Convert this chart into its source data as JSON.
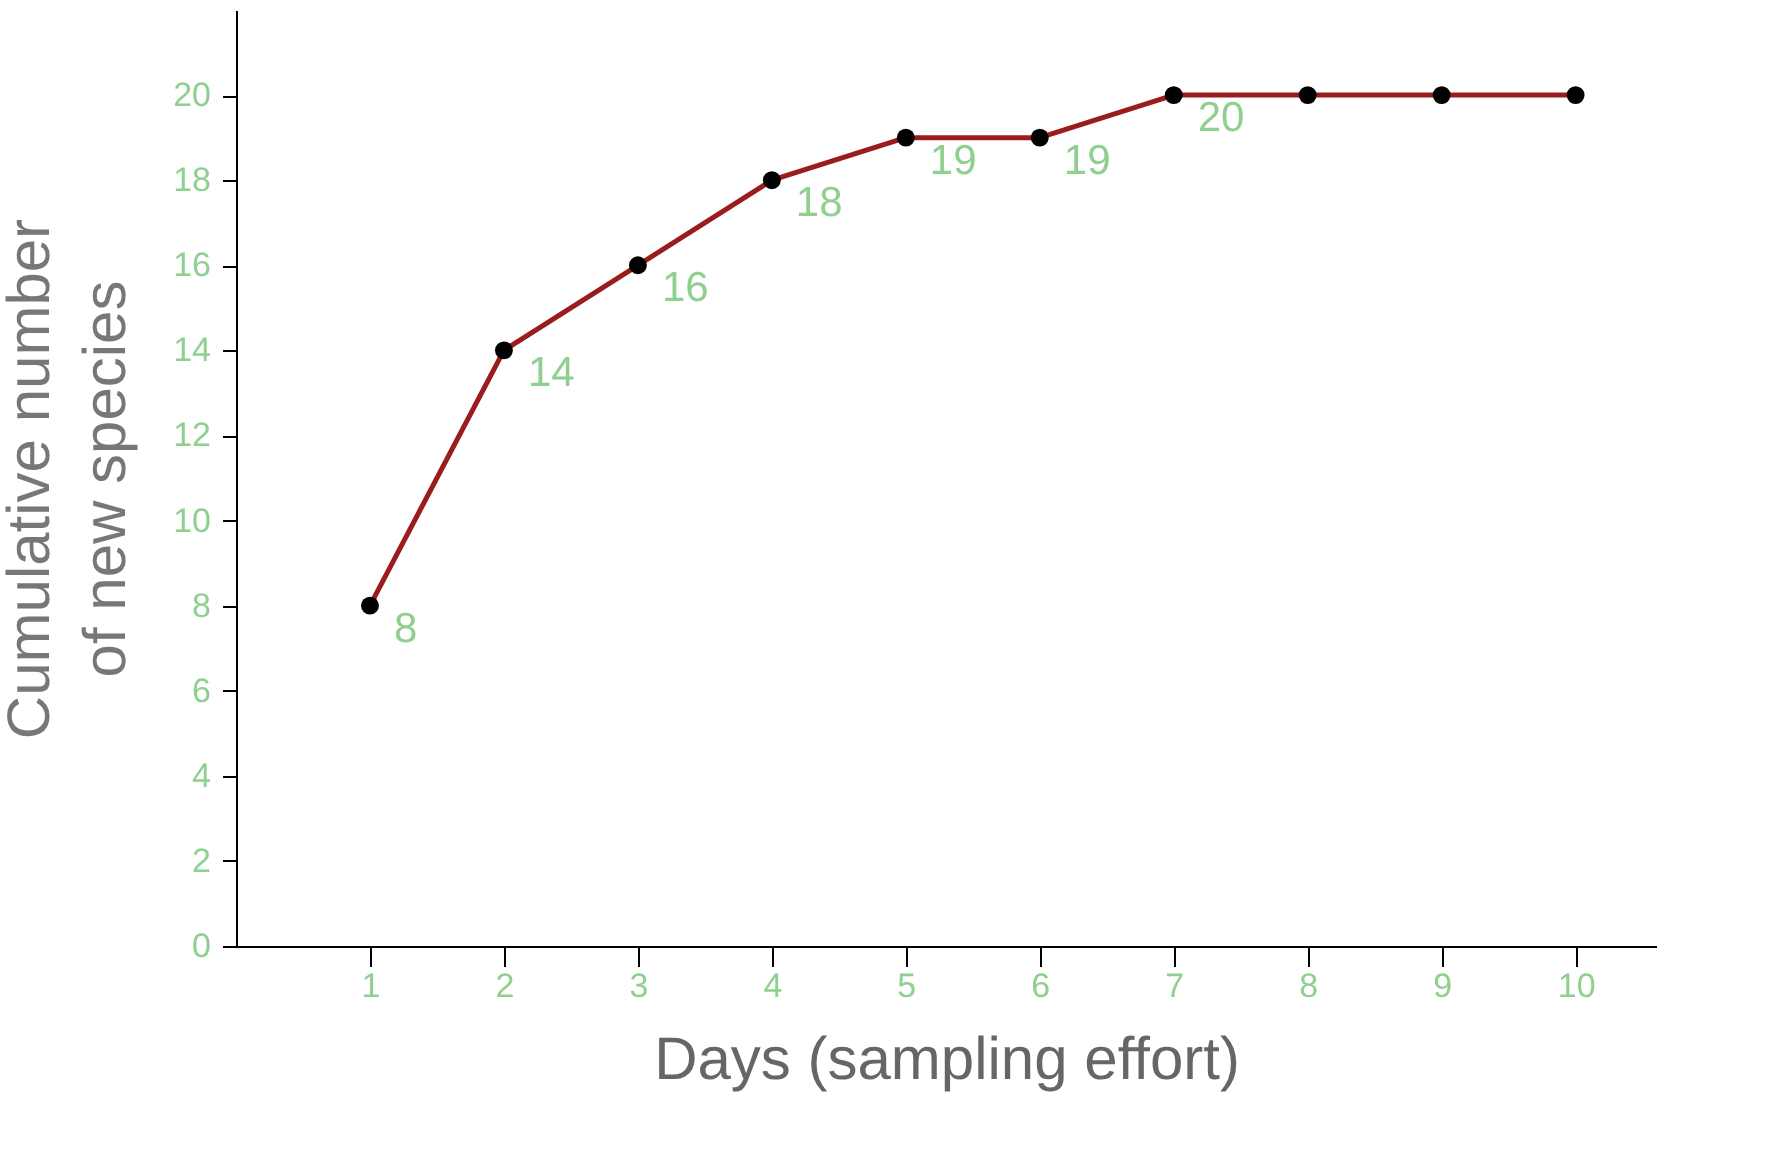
{
  "chart_data": {
    "type": "line",
    "xlabel": "Days (sampling effort)",
    "ylabel": "Cumulative number\nof new species",
    "x": [
      1,
      2,
      3,
      4,
      5,
      6,
      7,
      8,
      9,
      10
    ],
    "series": [
      {
        "color": "#9b1c1c",
        "values": [
          8,
          14,
          16,
          18,
          19,
          19,
          20,
          20,
          20,
          20
        ],
        "value_labels": [
          "8",
          "14",
          "16",
          "18",
          "19",
          "19",
          "20",
          null,
          null,
          null
        ]
      }
    ],
    "xlim": [
      0,
      10.6
    ],
    "xticks": [
      1,
      2,
      3,
      4,
      5,
      6,
      7,
      8,
      9,
      10
    ],
    "ylim": [
      0,
      22
    ],
    "yticks": [
      0,
      2,
      4,
      6,
      8,
      10,
      12,
      14,
      16,
      18,
      20
    ],
    "grid": false,
    "legend": false,
    "marker": "circle",
    "line_style": "solid"
  }
}
